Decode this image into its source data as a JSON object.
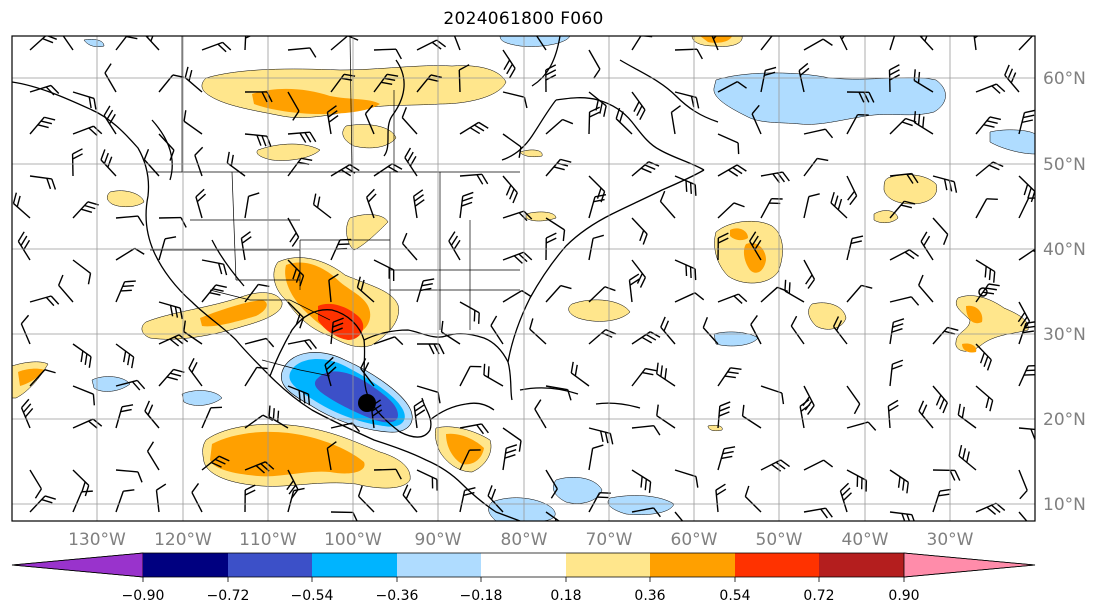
{
  "title": "2024061800 F060",
  "latitude_labels": [
    "60°N",
    "50°N",
    "40°N",
    "30°N",
    "20°N",
    "10°N"
  ],
  "longitude_labels": [
    "130°W",
    "120°W",
    "110°W",
    "100°W",
    "90°W",
    "80°W",
    "70°W",
    "60°W",
    "50°W",
    "40°W",
    "30°W"
  ],
  "colorbar": {
    "ticks": [
      "−0.90",
      "−0.72",
      "−0.54",
      "−0.36",
      "−0.18",
      "0.18",
      "0.36",
      "0.54",
      "0.72",
      "0.90"
    ],
    "colors": [
      "#9933cc",
      "#000080",
      "#3c50c8",
      "#00b4ff",
      "#afdcff",
      "#ffffff",
      "#ffe68c",
      "#ffa000",
      "#ff3200",
      "#b41e1e",
      "#ff8caa"
    ]
  },
  "storm_marker": {
    "lon": -97.5,
    "lat": 21.7
  }
}
